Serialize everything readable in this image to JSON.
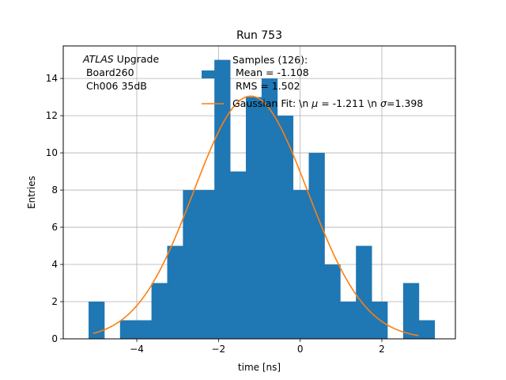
{
  "chart_data": {
    "type": "bar",
    "title": "Run 753",
    "xlabel": "time [ns]",
    "ylabel": "Entries",
    "xlim": [
      -5.8,
      3.8
    ],
    "ylim": [
      0,
      15.75
    ],
    "grid": true,
    "xticks": [
      -4,
      -2,
      0,
      2
    ],
    "xtick_labels": [
      "−4",
      "−2",
      "0",
      "2"
    ],
    "yticks": [
      0,
      2,
      4,
      6,
      8,
      10,
      12,
      14
    ],
    "ytick_labels": [
      "0",
      "2",
      "4",
      "6",
      "8",
      "10",
      "12",
      "14"
    ],
    "hist_color": "#1f77b4",
    "fit_color": "#ff7f0e",
    "grid_color": "#b0b0b0",
    "bin_edges": [
      -5.18,
      -4.795,
      -4.41,
      -4.025,
      -3.64,
      -3.255,
      -2.87,
      -2.485,
      -2.1,
      -1.715,
      -1.33,
      -0.945,
      -0.56,
      -0.175,
      0.21,
      0.595,
      0.98,
      1.365,
      1.75,
      2.135,
      2.52,
      2.905,
      3.29
    ],
    "counts": [
      2,
      0,
      1,
      1,
      3,
      5,
      8,
      8,
      15,
      9,
      13,
      14,
      12,
      8,
      10,
      4,
      2,
      5,
      2,
      0,
      3,
      1
    ],
    "fit": {
      "amplitude": 13.05,
      "mu": -1.211,
      "sigma": 1.398,
      "x_range": [
        -5.07,
        2.9
      ]
    },
    "annotation": {
      "atlas": "ATLAS",
      "atlas_suffix": " Upgrade",
      "line2": " Board260",
      "line3": " Ch006 35dB"
    },
    "legend": {
      "placement": "upper-center",
      "hist_line1": "Samples (126):",
      "hist_line2": " Mean = -1.108",
      "hist_line3": " RMS = 1.502",
      "fit_label_prefix": "Gaussian Fit: \\n ",
      "fit_mu_symbol": "μ",
      "fit_mu_value": " = -1.211 \\n ",
      "fit_sigma_symbol": "σ",
      "fit_sigma_value": "=1.398"
    }
  }
}
